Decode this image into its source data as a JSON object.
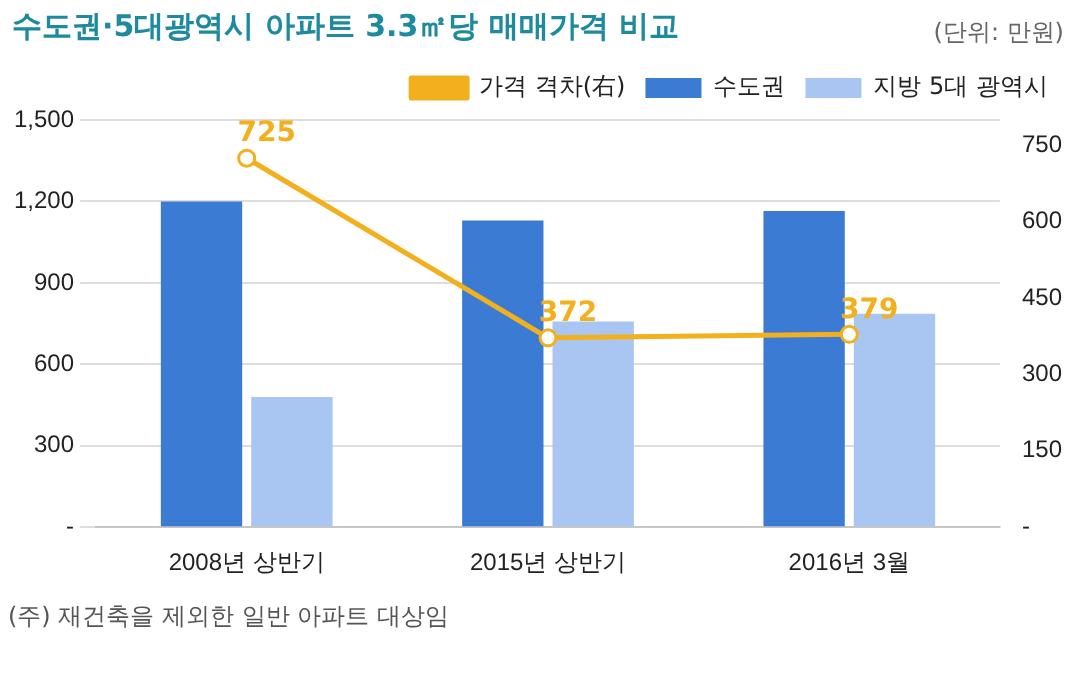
{
  "chart_data": {
    "type": "bar",
    "title": "수도권·5대광역시 아파트 3.3㎡당 매매가격 비교",
    "categories": [
      "2008년 상반기",
      "2015년 상반기",
      "2016년 3월"
    ],
    "series": [
      {
        "name": "수도권",
        "color": "#3b7bd4",
        "values": [
          1200,
          1130,
          1165
        ]
      },
      {
        "name": "지방 5대 광역시",
        "color": "#a9c5f2",
        "values": [
          480,
          758,
          786
        ]
      },
      {
        "name": "가격 격차(右)",
        "type": "line",
        "axis": "y2",
        "color": "#f2b01e",
        "marker": "circle",
        "values": [
          725,
          372,
          379
        ],
        "value_labels": [
          "725",
          "372",
          "379"
        ]
      }
    ],
    "ylim": [
      0,
      1500
    ],
    "yticks": [
      {
        "value": 0,
        "label": "-"
      },
      300,
      600,
      900,
      {
        "value": 1200,
        "label": "1,200"
      },
      {
        "value": 1500,
        "label": "1,500"
      }
    ],
    "y2lim": [
      0,
      800
    ],
    "y2ticks": [
      {
        "value": 0,
        "label": "-"
      },
      150,
      300,
      450,
      600,
      750
    ],
    "grid": "y",
    "legend": "top",
    "annotations": [
      "(단위: 만원)",
      "(주) 재건축을 제외한 일반 아파트 대상임"
    ]
  }
}
